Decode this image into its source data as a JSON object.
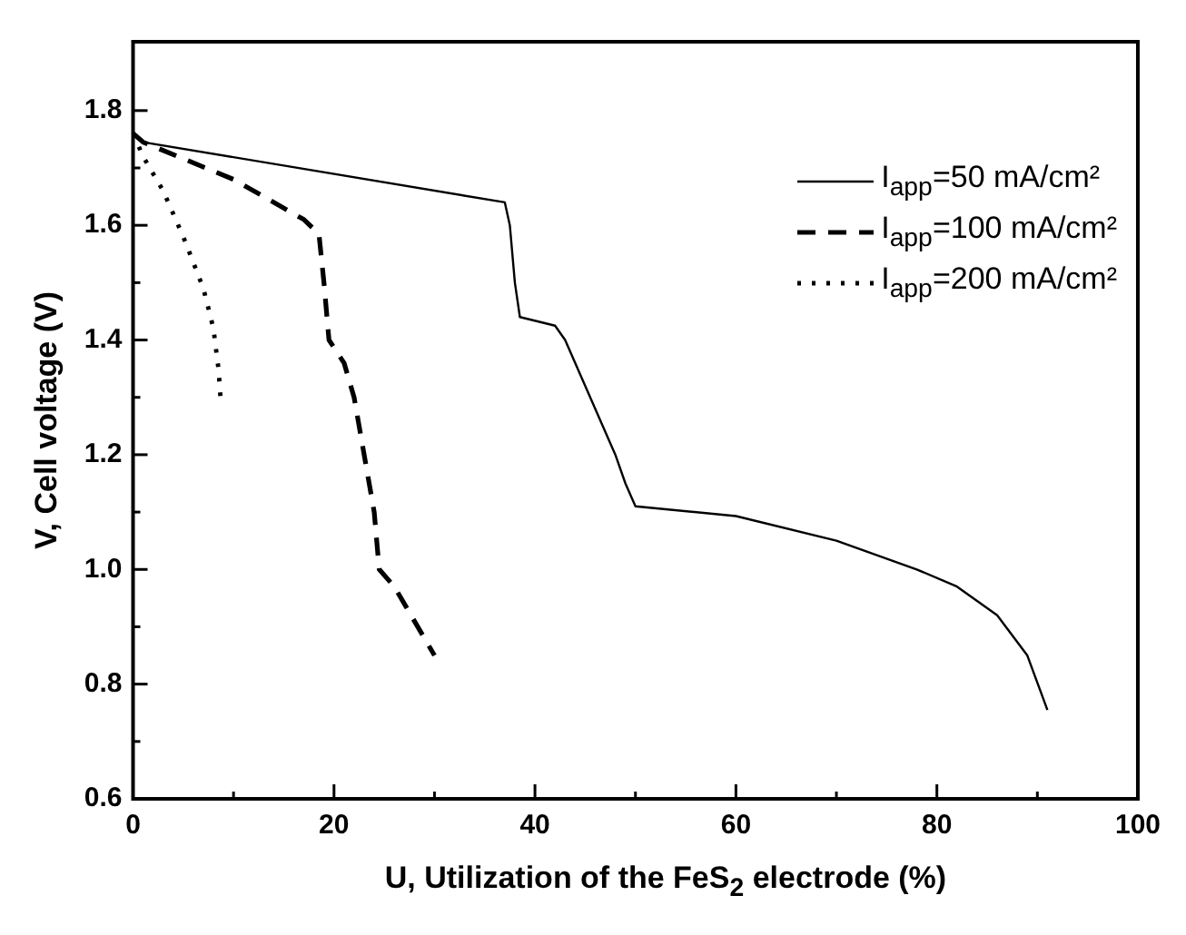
{
  "chart_data": {
    "type": "line",
    "xlabel": "U, Utilization of the FeS$_{2}$ electrode (%)",
    "ylabel": "V, Cell voltage (V)",
    "xlim": [
      0,
      100
    ],
    "xticks": [
      0,
      {
        "value": 10,
        "label": null
      },
      20,
      {
        "value": 30,
        "label": null
      },
      40,
      {
        "value": 50,
        "label": null
      },
      60,
      {
        "value": 70,
        "label": null
      },
      80,
      {
        "value": 90,
        "label": null
      },
      100
    ],
    "ylim": [
      0.6,
      1.92
    ],
    "yticks": [
      0.6,
      {
        "value": 0.7,
        "label": null
      },
      0.8,
      {
        "value": 0.9,
        "label": null
      },
      {
        "value": 1.0,
        "label": "1.0"
      },
      {
        "value": 1.1,
        "label": null
      },
      1.2,
      {
        "value": 1.3,
        "label": null
      },
      1.4,
      {
        "value": 1.5,
        "label": null
      },
      1.6,
      {
        "value": 1.7,
        "label": null
      },
      1.8
    ],
    "grid": false,
    "legend": "top right",
    "marker": "none",
    "series": [
      {
        "name": "I$_{app}$=50 mA/cm²",
        "color": "#000000",
        "line_style": "solid",
        "x": [
          0,
          1,
          37,
          37.5,
          38,
          38.5,
          42,
          43,
          48,
          49,
          50,
          60,
          70,
          78,
          82,
          86,
          89,
          91
        ],
        "values": [
          1.76,
          1.745,
          1.64,
          1.6,
          1.5,
          1.44,
          1.425,
          1.4,
          1.2,
          1.15,
          1.11,
          1.093,
          1.05,
          1.0,
          0.97,
          0.92,
          0.85,
          0.755
        ]
      },
      {
        "name": "I$_{app}$=100 mA/cm²",
        "color": "#000000",
        "line_style": "dashed",
        "x": [
          0,
          1,
          10,
          17,
          18.5,
          19,
          19.5,
          21,
          22,
          24,
          24.5,
          26,
          27,
          30
        ],
        "values": [
          1.76,
          1.745,
          1.68,
          1.61,
          1.585,
          1.5,
          1.4,
          1.36,
          1.3,
          1.1,
          1.0,
          0.97,
          0.94,
          0.85
        ]
      },
      {
        "name": "I$_{app}$=200 mA/cm²",
        "color": "#000000",
        "line_style": "dotted",
        "x": [
          0,
          1,
          3,
          5,
          7,
          8,
          8.5,
          8.7
        ],
        "values": [
          1.76,
          1.72,
          1.66,
          1.58,
          1.49,
          1.42,
          1.35,
          1.3
        ]
      }
    ]
  }
}
